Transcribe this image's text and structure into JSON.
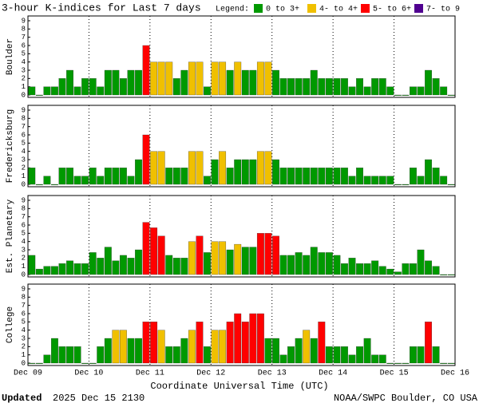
{
  "header": {
    "title": "3-hour K-indices for Last 7 days",
    "legend_label": "Legend:",
    "legend": [
      {
        "label": "0 to 3+",
        "color": "#009900"
      },
      {
        "label": "4- to 4+",
        "color": "#f0c000"
      },
      {
        "label": "5- to 6+",
        "color": "#ff0000"
      },
      {
        "label": "7- to 9",
        "color": "#500090"
      }
    ]
  },
  "chart_data": [
    {
      "type": "bar",
      "ylabel": "Boulder",
      "ylim": [
        0,
        9
      ],
      "yticks": [
        0,
        1,
        2,
        3,
        4,
        5,
        6,
        7,
        8,
        9
      ],
      "values": [
        1,
        0,
        1,
        1,
        2,
        3,
        1,
        2,
        2,
        1,
        3,
        3,
        2,
        3,
        3,
        6,
        4,
        4,
        4,
        2,
        3,
        4,
        4,
        1,
        4,
        4,
        3,
        4,
        3,
        3,
        4,
        4,
        3,
        2,
        2,
        2,
        2,
        3,
        2,
        2,
        2,
        2,
        1,
        2,
        1,
        2,
        2,
        1,
        0,
        0,
        1,
        1,
        3,
        2,
        1,
        0
      ],
      "colors": [
        "#009900",
        "#009900",
        "#009900",
        "#009900",
        "#009900",
        "#009900",
        "#009900",
        "#009900",
        "#009900",
        "#009900",
        "#009900",
        "#009900",
        "#009900",
        "#009900",
        "#009900",
        "#ff0000",
        "#f0c000",
        "#f0c000",
        "#f0c000",
        "#009900",
        "#009900",
        "#f0c000",
        "#f0c000",
        "#009900",
        "#f0c000",
        "#f0c000",
        "#009900",
        "#f0c000",
        "#009900",
        "#009900",
        "#f0c000",
        "#f0c000",
        "#009900",
        "#009900",
        "#009900",
        "#009900",
        "#009900",
        "#009900",
        "#009900",
        "#009900",
        "#009900",
        "#009900",
        "#009900",
        "#009900",
        "#009900",
        "#009900",
        "#009900",
        "#009900",
        "#009900",
        "#009900",
        "#009900",
        "#009900",
        "#009900",
        "#009900",
        "#009900",
        "#009900"
      ]
    },
    {
      "type": "bar",
      "ylabel": "Fredericksburg",
      "ylim": [
        0,
        9
      ],
      "yticks": [
        0,
        1,
        2,
        3,
        4,
        5,
        6,
        7,
        8,
        9
      ],
      "values": [
        2,
        0,
        1,
        0,
        2,
        2,
        1,
        1,
        2,
        1,
        2,
        2,
        2,
        1,
        3,
        6,
        4,
        4,
        2,
        2,
        2,
        4,
        4,
        1,
        3,
        4,
        2,
        3,
        3,
        3,
        4,
        4,
        3,
        2,
        2,
        2,
        2,
        2,
        2,
        2,
        2,
        2,
        1,
        2,
        1,
        1,
        1,
        1,
        0,
        0,
        2,
        1,
        3,
        2,
        1,
        0
      ],
      "colors": [
        "#009900",
        "#009900",
        "#009900",
        "#009900",
        "#009900",
        "#009900",
        "#009900",
        "#009900",
        "#009900",
        "#009900",
        "#009900",
        "#009900",
        "#009900",
        "#009900",
        "#009900",
        "#ff0000",
        "#f0c000",
        "#f0c000",
        "#009900",
        "#009900",
        "#009900",
        "#f0c000",
        "#f0c000",
        "#009900",
        "#009900",
        "#f0c000",
        "#009900",
        "#009900",
        "#009900",
        "#009900",
        "#f0c000",
        "#f0c000",
        "#009900",
        "#009900",
        "#009900",
        "#009900",
        "#009900",
        "#009900",
        "#009900",
        "#009900",
        "#009900",
        "#009900",
        "#009900",
        "#009900",
        "#009900",
        "#009900",
        "#009900",
        "#009900",
        "#009900",
        "#009900",
        "#009900",
        "#009900",
        "#009900",
        "#009900",
        "#009900",
        "#009900"
      ]
    },
    {
      "type": "bar",
      "ylabel": "Est. Planetary",
      "ylim": [
        0,
        9
      ],
      "yticks": [
        0,
        1,
        2,
        3,
        4,
        5,
        6,
        7,
        8,
        9
      ],
      "values": [
        2.33,
        0.67,
        1,
        1,
        1.33,
        1.67,
        1.33,
        1.33,
        2.67,
        2,
        3.33,
        1.67,
        2.33,
        2,
        3,
        6.33,
        5.67,
        4.67,
        2.33,
        2,
        2,
        4,
        4.67,
        2.67,
        4,
        4,
        3,
        3.67,
        3.33,
        3.33,
        5,
        5,
        4.67,
        2.33,
        2.33,
        2.67,
        2.33,
        3.33,
        2.67,
        2.67,
        2.33,
        1.33,
        2,
        1.33,
        1.33,
        1.67,
        1,
        0.67,
        0.33,
        1.33,
        1.33,
        3,
        1.67,
        1,
        0,
        0
      ],
      "colors": [
        "#009900",
        "#009900",
        "#009900",
        "#009900",
        "#009900",
        "#009900",
        "#009900",
        "#009900",
        "#009900",
        "#009900",
        "#009900",
        "#009900",
        "#009900",
        "#009900",
        "#009900",
        "#ff0000",
        "#ff0000",
        "#ff0000",
        "#009900",
        "#009900",
        "#009900",
        "#f0c000",
        "#ff0000",
        "#009900",
        "#f0c000",
        "#f0c000",
        "#009900",
        "#f0c000",
        "#009900",
        "#009900",
        "#ff0000",
        "#ff0000",
        "#ff0000",
        "#009900",
        "#009900",
        "#009900",
        "#009900",
        "#009900",
        "#009900",
        "#009900",
        "#009900",
        "#009900",
        "#009900",
        "#009900",
        "#009900",
        "#009900",
        "#009900",
        "#009900",
        "#009900",
        "#009900",
        "#009900",
        "#009900",
        "#009900",
        "#009900",
        "#009900",
        "#009900"
      ]
    },
    {
      "type": "bar",
      "ylabel": "College",
      "ylim": [
        0,
        9
      ],
      "yticks": [
        0,
        1,
        2,
        3,
        4,
        5,
        6,
        7,
        8,
        9
      ],
      "values": [
        0,
        0,
        1,
        3,
        2,
        2,
        2,
        0,
        0,
        2,
        3,
        4,
        4,
        3,
        3,
        5,
        5,
        4,
        2,
        2,
        3,
        4,
        5,
        2,
        4,
        4,
        5,
        6,
        5,
        6,
        6,
        3,
        3,
        1,
        2,
        3,
        4,
        3,
        5,
        2,
        2,
        2,
        1,
        2,
        3,
        1,
        1,
        0,
        0,
        0,
        2,
        2,
        5,
        2,
        0,
        0
      ],
      "colors": [
        "#009900",
        "#009900",
        "#009900",
        "#009900",
        "#009900",
        "#009900",
        "#009900",
        "#009900",
        "#009900",
        "#009900",
        "#009900",
        "#f0c000",
        "#f0c000",
        "#009900",
        "#009900",
        "#ff0000",
        "#ff0000",
        "#f0c000",
        "#009900",
        "#009900",
        "#009900",
        "#f0c000",
        "#ff0000",
        "#009900",
        "#f0c000",
        "#f0c000",
        "#ff0000",
        "#ff0000",
        "#ff0000",
        "#ff0000",
        "#ff0000",
        "#009900",
        "#009900",
        "#009900",
        "#009900",
        "#009900",
        "#f0c000",
        "#009900",
        "#ff0000",
        "#009900",
        "#009900",
        "#009900",
        "#009900",
        "#009900",
        "#009900",
        "#009900",
        "#009900",
        "#009900",
        "#009900",
        "#009900",
        "#009900",
        "#009900",
        "#ff0000",
        "#009900",
        "#009900",
        "#009900"
      ]
    }
  ],
  "x_axis": {
    "ticks": [
      "Dec 09",
      "Dec 10",
      "Dec 11",
      "Dec 12",
      "Dec 13",
      "Dec 14",
      "Dec 15",
      "Dec 16"
    ],
    "label": "Coordinate Universal Time (UTC)"
  },
  "footer": {
    "updated_bold": "Updated",
    "updated": "2025 Dec 15 2130",
    "credit": "NOAA/SWPC Boulder, CO USA"
  }
}
